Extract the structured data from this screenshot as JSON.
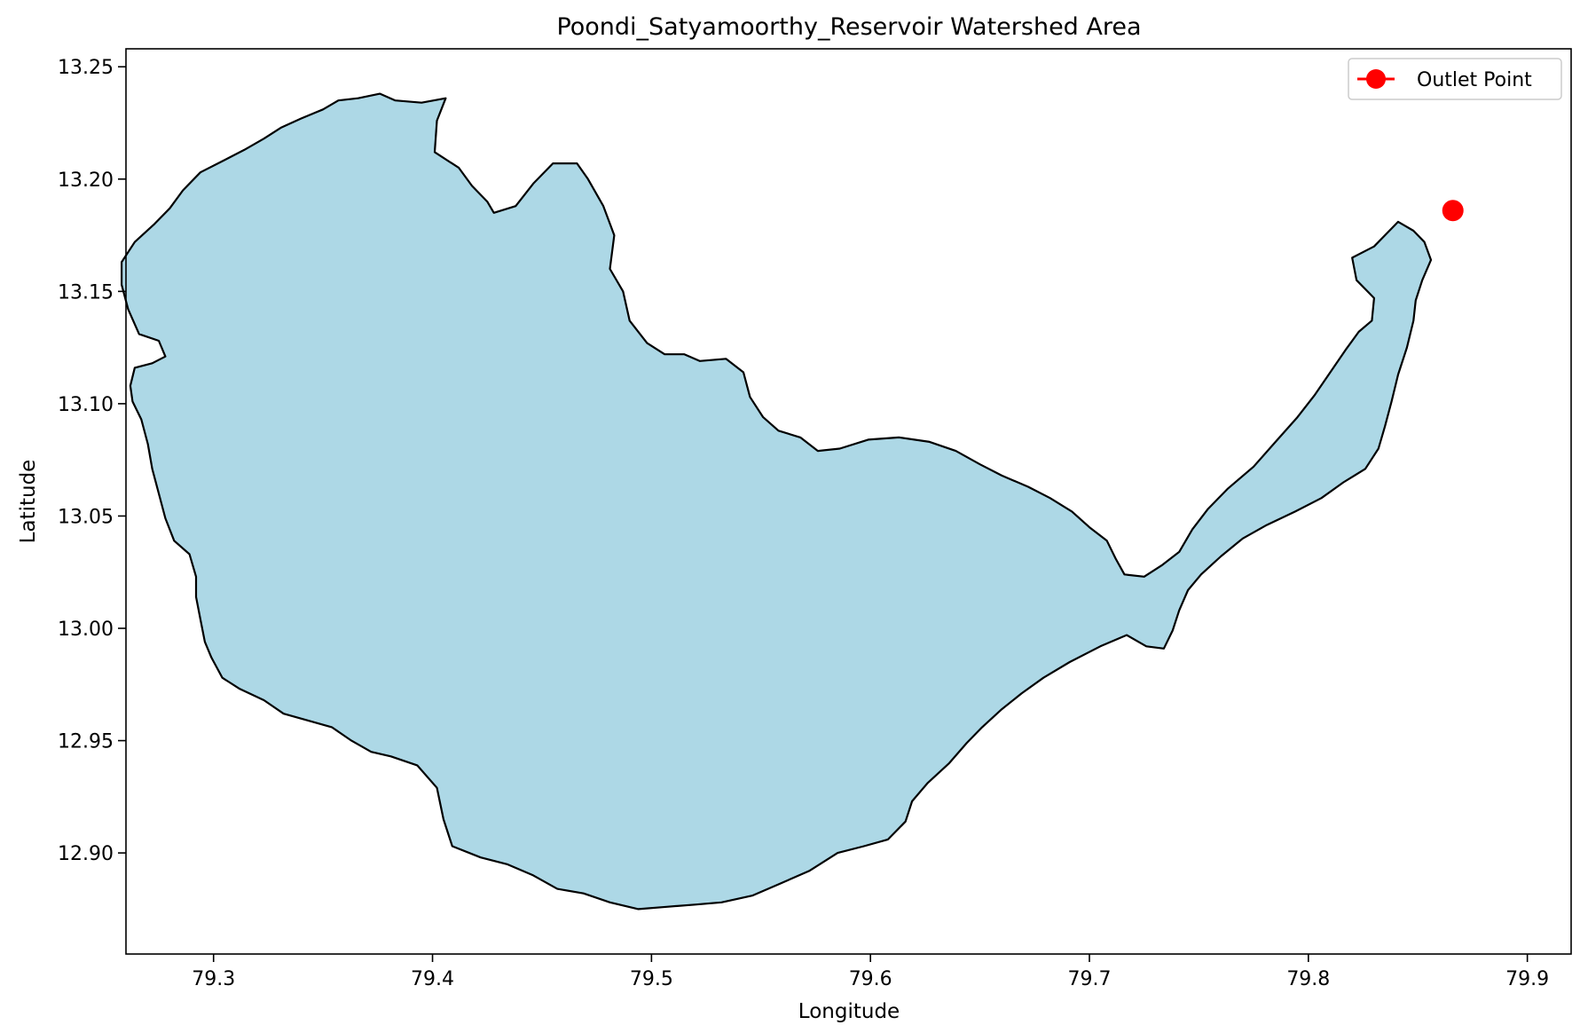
{
  "chart_data": {
    "type": "map",
    "title": "Poondi_Satyamoorthy_Reservoir Watershed Area",
    "xlabel": "Longitude",
    "ylabel": "Latitude",
    "xlim": [
      79.26,
      79.92
    ],
    "ylim": [
      12.855,
      13.258
    ],
    "xticks": [
      79.3,
      79.4,
      79.5,
      79.6,
      79.7,
      79.8,
      79.9
    ],
    "yticks": [
      12.9,
      12.95,
      13.0,
      13.05,
      13.1,
      13.15,
      13.2,
      13.25
    ],
    "xtick_labels": [
      "79.3",
      "79.4",
      "79.5",
      "79.6",
      "79.7",
      "79.8",
      "79.9"
    ],
    "ytick_labels": [
      "12.90",
      "12.95",
      "13.00",
      "13.05",
      "13.10",
      "13.15",
      "13.20",
      "13.25"
    ],
    "grid": false,
    "legend_position": "top-right",
    "watershed": {
      "fill": "#add8e6",
      "stroke": "#000000",
      "boundary": [
        [
          79.376,
          13.238
        ],
        [
          79.383,
          13.235
        ],
        [
          79.395,
          13.234
        ],
        [
          79.406,
          13.236
        ],
        [
          79.402,
          13.226
        ],
        [
          79.401,
          13.212
        ],
        [
          79.412,
          13.205
        ],
        [
          79.418,
          13.197
        ],
        [
          79.425,
          13.19
        ],
        [
          79.428,
          13.185
        ],
        [
          79.438,
          13.188
        ],
        [
          79.446,
          13.198
        ],
        [
          79.455,
          13.207
        ],
        [
          79.466,
          13.207
        ],
        [
          79.471,
          13.2
        ],
        [
          79.478,
          13.188
        ],
        [
          79.483,
          13.175
        ],
        [
          79.481,
          13.16
        ],
        [
          79.487,
          13.15
        ],
        [
          79.49,
          13.137
        ],
        [
          79.498,
          13.127
        ],
        [
          79.506,
          13.122
        ],
        [
          79.515,
          13.122
        ],
        [
          79.522,
          13.119
        ],
        [
          79.534,
          13.12
        ],
        [
          79.542,
          13.114
        ],
        [
          79.545,
          13.103
        ],
        [
          79.551,
          13.094
        ],
        [
          79.558,
          13.088
        ],
        [
          79.568,
          13.085
        ],
        [
          79.576,
          13.079
        ],
        [
          79.586,
          13.08
        ],
        [
          79.599,
          13.084
        ],
        [
          79.613,
          13.085
        ],
        [
          79.627,
          13.083
        ],
        [
          79.639,
          13.079
        ],
        [
          79.65,
          13.073
        ],
        [
          79.66,
          13.068
        ],
        [
          79.672,
          13.063
        ],
        [
          79.682,
          13.058
        ],
        [
          79.692,
          13.052
        ],
        [
          79.7,
          13.045
        ],
        [
          79.708,
          13.039
        ],
        [
          79.712,
          13.031
        ],
        [
          79.716,
          13.024
        ],
        [
          79.725,
          13.023
        ],
        [
          79.733,
          13.028
        ],
        [
          79.741,
          13.034
        ],
        [
          79.747,
          13.044
        ],
        [
          79.754,
          13.053
        ],
        [
          79.763,
          13.062
        ],
        [
          79.775,
          13.072
        ],
        [
          79.785,
          13.083
        ],
        [
          79.795,
          13.094
        ],
        [
          79.803,
          13.104
        ],
        [
          79.81,
          13.114
        ],
        [
          79.817,
          13.124
        ],
        [
          79.823,
          13.132
        ],
        [
          79.829,
          13.137
        ],
        [
          79.83,
          13.147
        ],
        [
          79.822,
          13.155
        ],
        [
          79.82,
          13.165
        ],
        [
          79.83,
          13.17
        ],
        [
          79.836,
          13.176
        ],
        [
          79.841,
          13.181
        ],
        [
          79.848,
          13.177
        ],
        [
          79.853,
          13.172
        ],
        [
          79.856,
          13.164
        ],
        [
          79.852,
          13.155
        ],
        [
          79.849,
          13.146
        ],
        [
          79.848,
          13.137
        ],
        [
          79.845,
          13.125
        ],
        [
          79.841,
          13.113
        ],
        [
          79.838,
          13.101
        ],
        [
          79.835,
          13.09
        ],
        [
          79.832,
          13.08
        ],
        [
          79.826,
          13.071
        ],
        [
          79.816,
          13.065
        ],
        [
          79.806,
          13.058
        ],
        [
          79.794,
          13.052
        ],
        [
          79.781,
          13.046
        ],
        [
          79.77,
          13.04
        ],
        [
          79.76,
          13.032
        ],
        [
          79.751,
          13.024
        ],
        [
          79.745,
          13.017
        ],
        [
          79.741,
          13.008
        ],
        [
          79.738,
          12.999
        ],
        [
          79.734,
          12.991
        ],
        [
          79.726,
          12.992
        ],
        [
          79.717,
          12.997
        ],
        [
          79.705,
          12.992
        ],
        [
          79.691,
          12.985
        ],
        [
          79.679,
          12.978
        ],
        [
          79.669,
          12.971
        ],
        [
          79.66,
          12.964
        ],
        [
          79.651,
          12.956
        ],
        [
          79.644,
          12.949
        ],
        [
          79.636,
          12.94
        ],
        [
          79.626,
          12.931
        ],
        [
          79.619,
          12.923
        ],
        [
          79.616,
          12.914
        ],
        [
          79.608,
          12.906
        ],
        [
          79.597,
          12.903
        ],
        [
          79.585,
          12.9
        ],
        [
          79.572,
          12.892
        ],
        [
          79.558,
          12.886
        ],
        [
          79.546,
          12.881
        ],
        [
          79.532,
          12.878
        ],
        [
          79.52,
          12.877
        ],
        [
          79.507,
          12.876
        ],
        [
          79.494,
          12.875
        ],
        [
          79.481,
          12.878
        ],
        [
          79.469,
          12.882
        ],
        [
          79.457,
          12.884
        ],
        [
          79.446,
          12.89
        ],
        [
          79.434,
          12.895
        ],
        [
          79.422,
          12.898
        ],
        [
          79.409,
          12.903
        ],
        [
          79.405,
          12.915
        ],
        [
          79.402,
          12.929
        ],
        [
          79.393,
          12.939
        ],
        [
          79.381,
          12.943
        ],
        [
          79.372,
          12.945
        ],
        [
          79.363,
          12.95
        ],
        [
          79.354,
          12.956
        ],
        [
          79.343,
          12.959
        ],
        [
          79.332,
          12.962
        ],
        [
          79.323,
          12.968
        ],
        [
          79.312,
          12.973
        ],
        [
          79.304,
          12.978
        ],
        [
          79.299,
          12.987
        ],
        [
          79.296,
          12.994
        ],
        [
          79.294,
          13.004
        ],
        [
          79.292,
          13.014
        ],
        [
          79.292,
          13.023
        ],
        [
          79.289,
          13.033
        ],
        [
          79.282,
          13.039
        ],
        [
          79.278,
          13.049
        ],
        [
          79.275,
          13.06
        ],
        [
          79.272,
          13.071
        ],
        [
          79.27,
          13.082
        ],
        [
          79.267,
          13.093
        ],
        [
          79.263,
          13.101
        ],
        [
          79.262,
          13.108
        ],
        [
          79.264,
          13.116
        ],
        [
          79.272,
          13.118
        ],
        [
          79.278,
          13.121
        ],
        [
          79.275,
          13.128
        ],
        [
          79.266,
          13.131
        ],
        [
          79.261,
          13.142
        ],
        [
          79.258,
          13.153
        ],
        [
          79.258,
          13.163
        ],
        [
          79.264,
          13.172
        ],
        [
          79.273,
          13.18
        ],
        [
          79.28,
          13.187
        ],
        [
          79.286,
          13.195
        ],
        [
          79.294,
          13.203
        ],
        [
          79.304,
          13.208
        ],
        [
          79.314,
          13.213
        ],
        [
          79.323,
          13.218
        ],
        [
          79.331,
          13.223
        ],
        [
          79.34,
          13.227
        ],
        [
          79.35,
          13.231
        ],
        [
          79.357,
          13.235
        ],
        [
          79.366,
          13.236
        ]
      ]
    },
    "outlet_point": {
      "label": "Outlet Point",
      "lon": 79.866,
      "lat": 13.186,
      "color": "#ff0000"
    }
  }
}
